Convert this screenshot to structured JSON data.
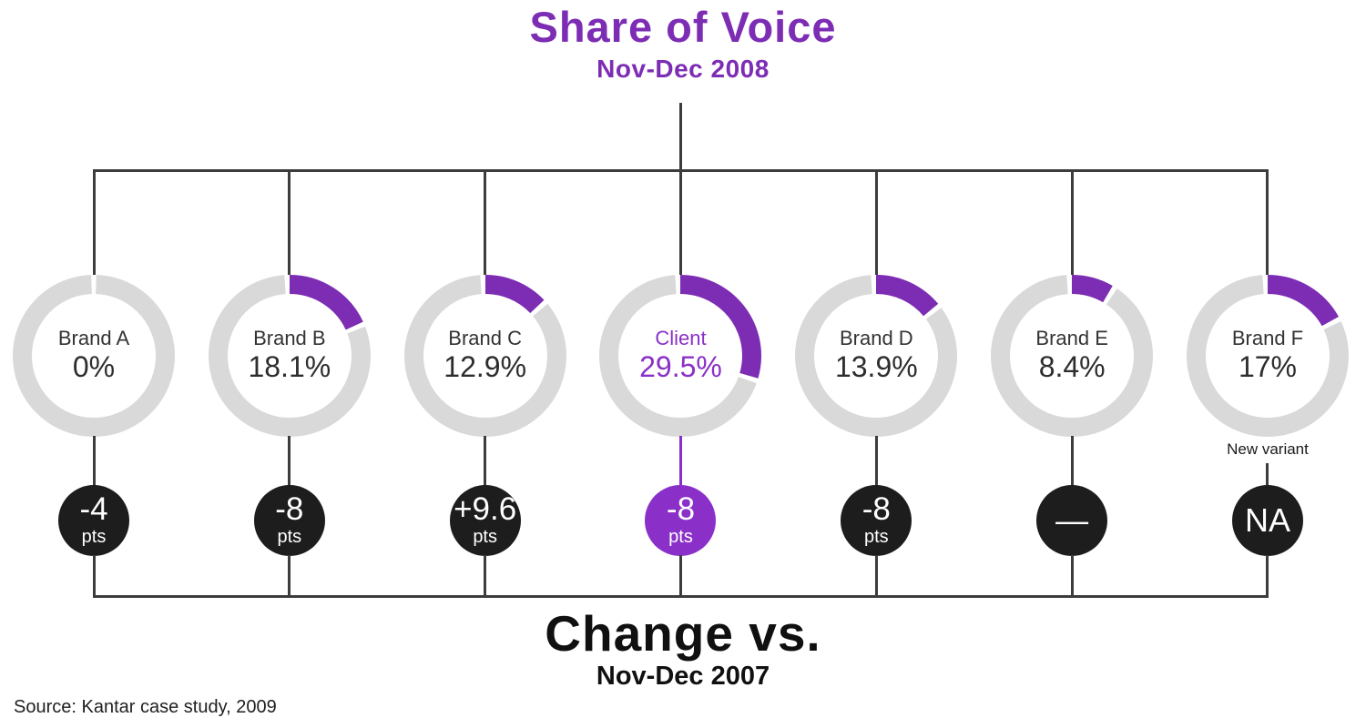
{
  "title": "Share of Voice",
  "subtitle": "Nov-Dec 2008",
  "bottom_title": "Change vs.",
  "bottom_subtitle": "Nov-Dec 2007",
  "source": "Source: Kantar case study, 2009",
  "colors": {
    "purple": "#7d2db4",
    "purple_light": "#8a30c8",
    "ring_gray": "#d9d9d9",
    "badge_black": "#1d1d1d",
    "line": "#3c3c3c",
    "text_dark": "#2d2d2d"
  },
  "chart_data": {
    "type": "pie",
    "variant": "donut-grid",
    "title": "Share of Voice",
    "period": "Nov-Dec 2008",
    "comparison_title": "Change vs.",
    "comparison_period": "Nov-Dec 2007",
    "source": "Source: Kantar case study, 2009",
    "brands": [
      {
        "label": "Brand A",
        "share_pct": 0,
        "share_label": "0%",
        "change_value": "-4",
        "change_unit": "pts",
        "highlight": false
      },
      {
        "label": "Brand B",
        "share_pct": 18.1,
        "share_label": "18.1%",
        "change_value": "-8",
        "change_unit": "pts",
        "highlight": false
      },
      {
        "label": "Brand C",
        "share_pct": 12.9,
        "share_label": "12.9%",
        "change_value": "+9.6",
        "change_unit": "pts",
        "highlight": false
      },
      {
        "label": "Client",
        "share_pct": 29.5,
        "share_label": "29.5%",
        "change_value": "-8",
        "change_unit": "pts",
        "highlight": true
      },
      {
        "label": "Brand D",
        "share_pct": 13.9,
        "share_label": "13.9%",
        "change_value": "-8",
        "change_unit": "pts",
        "highlight": false
      },
      {
        "label": "Brand E",
        "share_pct": 8.4,
        "share_label": "8.4%",
        "change_value": "—",
        "change_unit": "",
        "highlight": false
      },
      {
        "label": "Brand F",
        "share_pct": 17,
        "share_label": "17%",
        "change_value": "NA",
        "change_unit": "",
        "highlight": false,
        "note": "New variant"
      }
    ]
  }
}
